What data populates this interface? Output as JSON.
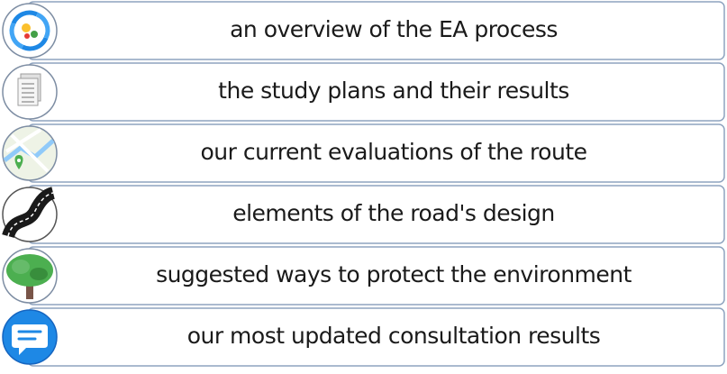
{
  "items": [
    {
      "label": "an overview of the EA process"
    },
    {
      "label": "the study plans and their results"
    },
    {
      "label": "our current evaluations of the route"
    },
    {
      "label": "elements of the road's design"
    },
    {
      "label": "suggested ways to protect the environment"
    },
    {
      "label": "our most updated consultation results"
    }
  ]
}
